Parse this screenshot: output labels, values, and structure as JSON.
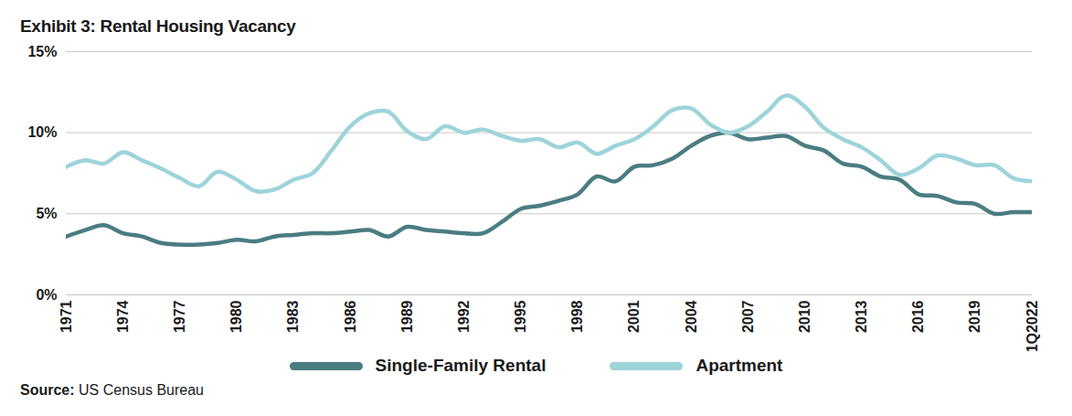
{
  "chart_data": {
    "type": "line",
    "title": "Exhibit 3: Rental Housing Vacancy",
    "source_label": "Source:",
    "source": "US Census Bureau",
    "x": [
      1971,
      1972,
      1973,
      1974,
      1975,
      1976,
      1977,
      1978,
      1979,
      1980,
      1981,
      1982,
      1983,
      1984,
      1985,
      1986,
      1987,
      1988,
      1989,
      1990,
      1991,
      1992,
      1993,
      1994,
      1995,
      1996,
      1997,
      1998,
      1999,
      2000,
      2001,
      2002,
      2003,
      2004,
      2005,
      2006,
      2007,
      2008,
      2009,
      2010,
      2011,
      2012,
      2013,
      2014,
      2015,
      2016,
      2017,
      2018,
      2019,
      2020,
      2021,
      2022
    ],
    "series": [
      {
        "name": "Single-Family Rental",
        "color": "#4a7d81",
        "values": [
          3.6,
          4.0,
          4.3,
          3.8,
          3.6,
          3.2,
          3.1,
          3.1,
          3.2,
          3.4,
          3.3,
          3.6,
          3.7,
          3.8,
          3.8,
          3.9,
          4.0,
          3.6,
          4.2,
          4.0,
          3.9,
          3.8,
          3.8,
          4.5,
          5.3,
          5.5,
          5.8,
          6.2,
          7.3,
          7.0,
          7.9,
          8.0,
          8.4,
          9.2,
          9.8,
          10.0,
          9.6,
          9.7,
          9.8,
          9.2,
          8.9,
          8.1,
          7.9,
          7.3,
          7.1,
          6.2,
          6.1,
          5.7,
          5.6,
          5.0,
          5.1,
          5.1
        ]
      },
      {
        "name": "Apartment",
        "color": "#9dd4da",
        "values": [
          7.9,
          8.3,
          8.1,
          8.8,
          8.3,
          7.8,
          7.2,
          6.7,
          7.6,
          7.1,
          6.4,
          6.5,
          7.1,
          7.5,
          8.9,
          10.4,
          11.2,
          11.3,
          10.1,
          9.6,
          10.4,
          10.0,
          10.2,
          9.8,
          9.5,
          9.6,
          9.1,
          9.4,
          8.7,
          9.2,
          9.6,
          10.4,
          11.4,
          11.5,
          10.5,
          10.0,
          10.4,
          11.3,
          12.3,
          11.6,
          10.3,
          9.6,
          9.1,
          8.3,
          7.4,
          7.8,
          8.6,
          8.4,
          8.0,
          8.0,
          7.2,
          7.0
        ]
      }
    ],
    "xlim": [
      1971,
      2022
    ],
    "xticks": [
      1971,
      1974,
      1977,
      1980,
      1983,
      1986,
      1989,
      1992,
      1995,
      1998,
      2001,
      2004,
      2007,
      2010,
      2013,
      2016,
      2019,
      {
        "value": 2022,
        "label": "1Q2022"
      }
    ],
    "ylim": [
      0,
      15
    ],
    "yticks": [
      {
        "value": 0,
        "label": "0%"
      },
      {
        "value": 5,
        "label": "5%"
      },
      {
        "value": 10,
        "label": "10%"
      },
      {
        "value": 15,
        "label": "15%"
      }
    ],
    "grid": true,
    "legend": "bottom"
  }
}
